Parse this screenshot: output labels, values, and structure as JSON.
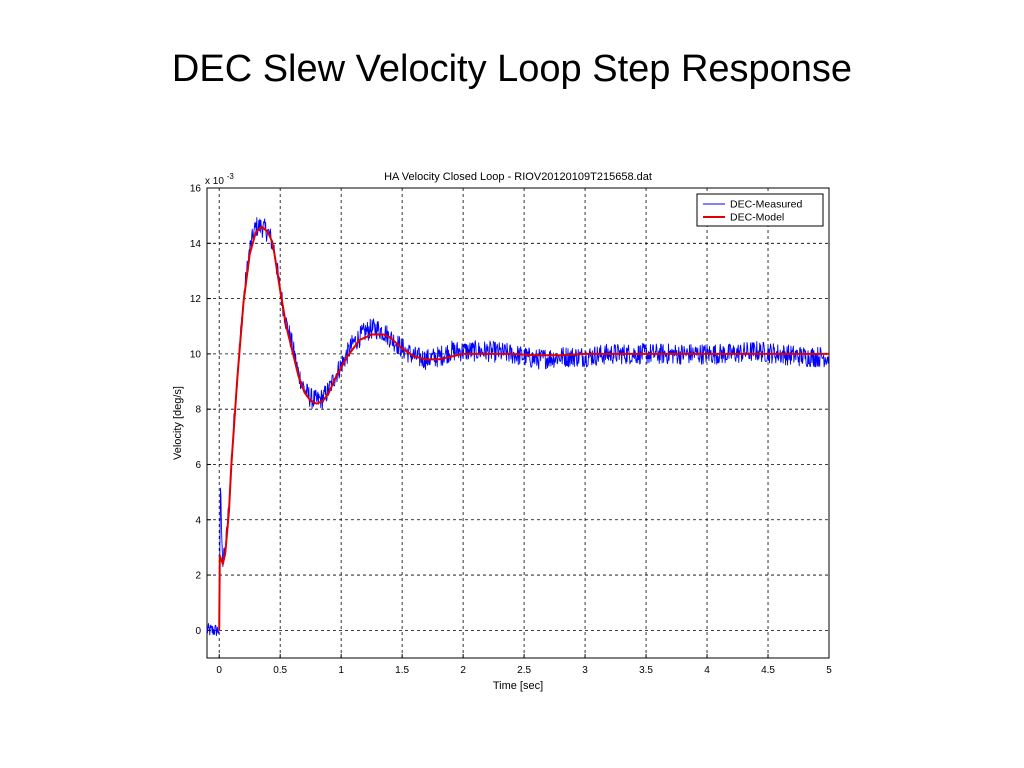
{
  "slide": {
    "title": "DEC Slew Velocity Loop Step Response"
  },
  "chart_data": {
    "type": "line",
    "title": "HA Velocity Closed Loop - RIOV20120109T215658.dat",
    "xlabel": "Time [sec]",
    "ylabel": "Velocity [deg/s]",
    "y_multiplier_label": "x 10",
    "y_multiplier_exponent": "-3",
    "xlim": [
      -0.1,
      5
    ],
    "ylim": [
      -1,
      16
    ],
    "xticks": [
      0,
      0.5,
      1,
      1.5,
      2,
      2.5,
      3,
      3.5,
      4,
      4.5,
      5
    ],
    "xtick_labels": [
      "0",
      "0.5",
      "1",
      "1.5",
      "2",
      "2.5",
      "3",
      "3.5",
      "4",
      "4.5",
      "5"
    ],
    "yticks": [
      0,
      2,
      4,
      6,
      8,
      10,
      12,
      14,
      16
    ],
    "ytick_labels": [
      "0",
      "2",
      "4",
      "6",
      "8",
      "10",
      "12",
      "14",
      "16"
    ],
    "grid": true,
    "legend_position": "top-right",
    "colors": {
      "measured": "#0000ff",
      "model": "#e00000"
    },
    "series": [
      {
        "name": "DEC-Measured",
        "color": "#0000ff",
        "x": [
          -0.1,
          -0.05,
          0,
          0.01,
          0.03,
          0.05,
          0.08,
          0.1,
          0.15,
          0.2,
          0.25,
          0.3,
          0.35,
          0.4,
          0.42,
          0.45,
          0.5,
          0.55,
          0.6,
          0.65,
          0.7,
          0.75,
          0.8,
          0.85,
          0.9,
          0.95,
          1.0,
          1.05,
          1.1,
          1.15,
          1.2,
          1.25,
          1.3,
          1.35,
          1.4,
          1.45,
          1.5,
          1.6,
          1.7,
          1.8,
          1.9,
          2.0,
          2.2,
          2.4,
          2.6,
          2.8,
          3.0,
          3.2,
          3.4,
          3.6,
          3.8,
          4.0,
          4.2,
          4.4,
          4.6,
          4.8,
          5.0
        ],
        "y": [
          0.0,
          0.0,
          0.0,
          5.2,
          2.4,
          2.9,
          4.5,
          6.2,
          9.3,
          12.0,
          13.8,
          14.6,
          14.6,
          14.4,
          14.2,
          13.8,
          12.3,
          11.1,
          10.3,
          9.3,
          8.7,
          8.4,
          8.3,
          8.4,
          8.7,
          9.2,
          9.6,
          10.0,
          10.4,
          10.6,
          10.8,
          10.9,
          10.9,
          10.8,
          10.6,
          10.4,
          10.2,
          9.9,
          9.8,
          9.9,
          10.1,
          10.1,
          10.1,
          10.0,
          9.8,
          9.9,
          9.9,
          10.0,
          10.0,
          10.0,
          10.0,
          10.0,
          10.0,
          10.1,
          10.0,
          9.9,
          9.9
        ]
      },
      {
        "name": "DEC-Model",
        "color": "#e00000",
        "x": [
          0,
          0.005,
          0.03,
          0.05,
          0.08,
          0.1,
          0.15,
          0.2,
          0.25,
          0.3,
          0.35,
          0.4,
          0.43,
          0.45,
          0.5,
          0.55,
          0.6,
          0.65,
          0.7,
          0.75,
          0.8,
          0.85,
          0.9,
          0.95,
          1.0,
          1.05,
          1.1,
          1.15,
          1.2,
          1.25,
          1.3,
          1.35,
          1.4,
          1.45,
          1.5,
          1.6,
          1.7,
          1.8,
          1.9,
          2.0,
          2.2,
          2.4,
          2.6,
          2.8,
          3.0,
          3.5,
          4.0,
          4.5,
          5.0
        ],
        "y": [
          0.0,
          2.7,
          2.4,
          2.8,
          4.3,
          6.0,
          9.2,
          11.9,
          13.6,
          14.4,
          14.6,
          14.4,
          14.1,
          13.7,
          12.3,
          11.0,
          10.1,
          9.2,
          8.6,
          8.3,
          8.2,
          8.3,
          8.6,
          9.1,
          9.5,
          9.9,
          10.2,
          10.5,
          10.6,
          10.7,
          10.7,
          10.7,
          10.6,
          10.4,
          10.2,
          9.9,
          9.8,
          9.8,
          9.9,
          10.0,
          10.0,
          10.0,
          9.95,
          9.95,
          10.0,
          10.0,
          10.0,
          10.0,
          10.0
        ]
      }
    ]
  }
}
